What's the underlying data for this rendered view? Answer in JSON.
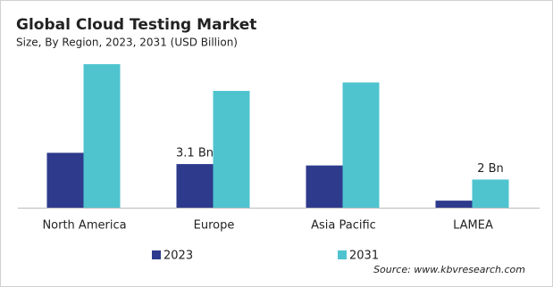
{
  "chart_data": {
    "type": "bar",
    "title": "Global Cloud Testing Market",
    "subtitle": "Size, By Region, 2023, 2031 (USD Billion)",
    "source": "Source: www.kbvresearch.com",
    "categories": [
      "North America",
      "Europe",
      "Asia Pacific",
      "LAMEA"
    ],
    "series": [
      {
        "name": "2023",
        "color": "#2e3a8c",
        "values": [
          3.9,
          3.1,
          3.0,
          0.5
        ],
        "value_labels": [
          null,
          "3.1 Bn",
          null,
          null
        ]
      },
      {
        "name": "2031",
        "color": "#4fc4cf",
        "values": [
          10.2,
          8.3,
          8.9,
          2.0
        ],
        "value_labels": [
          null,
          null,
          null,
          "2 Bn"
        ]
      }
    ]
  }
}
